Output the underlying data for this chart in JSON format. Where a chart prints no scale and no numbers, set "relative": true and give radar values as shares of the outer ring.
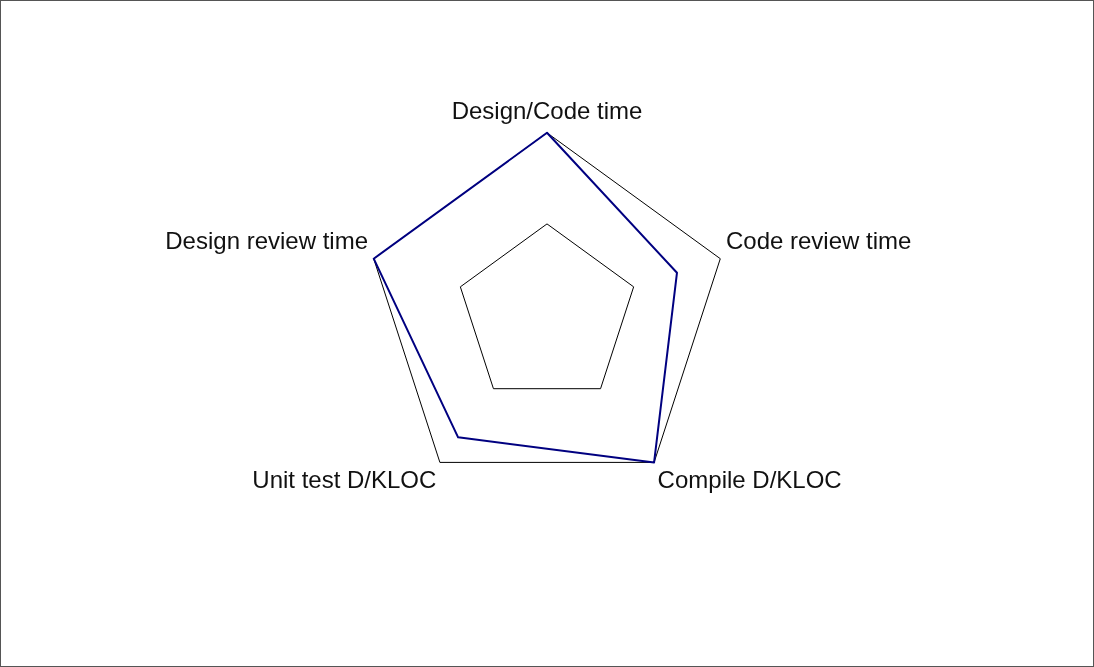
{
  "chart_data": {
    "type": "radar",
    "categories": [
      "Design/Code time",
      "Code review time",
      "Compile D/KLOC",
      "Unit test D/KLOC",
      "Design review time"
    ],
    "series": [
      {
        "color": "#000080",
        "values": [
          1,
          0.75,
          1,
          0.83,
          1
        ]
      }
    ],
    "relative": true,
    "grid": true,
    "legend": false,
    "marker": "none"
  }
}
